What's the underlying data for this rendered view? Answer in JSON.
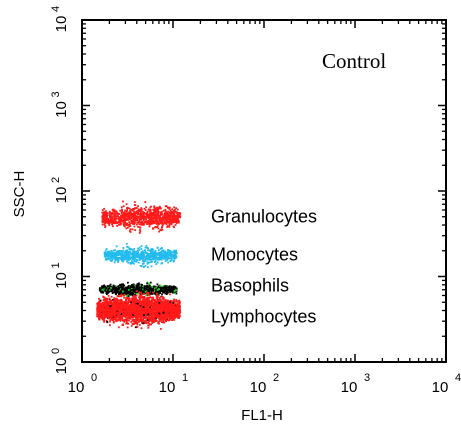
{
  "chart_data": {
    "type": "scatter",
    "title": "Control",
    "xlabel": "FL1-H",
    "ylabel": "SSC-H",
    "xscale": "log",
    "yscale": "log",
    "xlim": [
      1,
      10000
    ],
    "ylim": [
      1,
      10000
    ],
    "x_ticks": [
      {
        "base": "10",
        "exp": "0",
        "value": 1
      },
      {
        "base": "10",
        "exp": "1",
        "value": 10
      },
      {
        "base": "10",
        "exp": "2",
        "value": 100
      },
      {
        "base": "10",
        "exp": "3",
        "value": 1000
      },
      {
        "base": "10",
        "exp": "4",
        "value": 10000
      }
    ],
    "y_ticks": [
      {
        "base": "10",
        "exp": "0",
        "value": 1
      },
      {
        "base": "10",
        "exp": "1",
        "value": 10
      },
      {
        "base": "10",
        "exp": "2",
        "value": 100
      },
      {
        "base": "10",
        "exp": "3",
        "value": 1000
      },
      {
        "base": "10",
        "exp": "4",
        "value": 10000
      }
    ],
    "grid": false,
    "populations": [
      {
        "name": "Granulocytes",
        "color": "#ff1a1a",
        "x_range": [
          1.6,
          12
        ],
        "y_center": 50,
        "y_spread": 1.35,
        "density": 900
      },
      {
        "name": "Monocytes",
        "color": "#22bbee",
        "x_range": [
          1.7,
          11
        ],
        "y_center": 18,
        "y_spread": 1.25,
        "density": 650
      },
      {
        "name": "Basophils",
        "color": "#000000",
        "accent": "#22cc22",
        "x_range": [
          1.5,
          11
        ],
        "y_center": 7.2,
        "y_spread": 1.15,
        "density": 900
      },
      {
        "name": "Lymphocytes",
        "color": "#ff1a1a",
        "x_range": [
          1.4,
          12
        ],
        "y_center": 4.2,
        "y_spread": 1.45,
        "density": 2600
      }
    ]
  }
}
